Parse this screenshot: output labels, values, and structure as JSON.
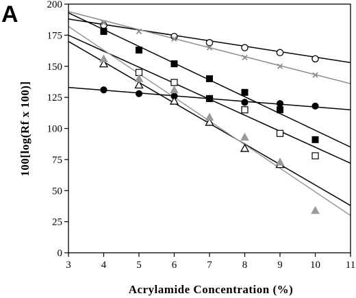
{
  "chart_data": {
    "type": "scatter",
    "panel_label": "A",
    "title": "",
    "xlabel": "Acrylamide Concentration (%)",
    "ylabel": "100[log(Rf x 100)]",
    "xlim": [
      3,
      11
    ],
    "ylim": [
      0,
      200
    ],
    "x_ticks": [
      "3",
      "4",
      "5",
      "6",
      "7",
      "8",
      "9",
      "10",
      "11"
    ],
    "y_ticks": [
      "0",
      "25",
      "50",
      "75",
      "100",
      "125",
      "150",
      "175",
      "200"
    ],
    "grid": false,
    "legend": "none",
    "series": [
      {
        "marker": "open-circle",
        "color": "#000000",
        "line_color": "#000000",
        "points": [
          [
            4,
            183
          ],
          [
            6,
            174
          ],
          [
            7,
            169
          ],
          [
            8,
            165
          ],
          [
            9,
            161
          ],
          [
            10,
            156
          ]
        ],
        "fit": [
          [
            3,
            188
          ],
          [
            11,
            153
          ]
        ]
      },
      {
        "marker": "cross",
        "color": "#8c8c8c",
        "line_color": "#8c8c8c",
        "points": [
          [
            4,
            185
          ],
          [
            5,
            178
          ],
          [
            6,
            172
          ],
          [
            7,
            165
          ],
          [
            8,
            157
          ],
          [
            9,
            150
          ],
          [
            10,
            143
          ]
        ],
        "fit": [
          [
            3,
            194
          ],
          [
            11,
            136
          ]
        ]
      },
      {
        "marker": "filled-square",
        "color": "#000000",
        "line_color": "#000000",
        "points": [
          [
            4,
            178
          ],
          [
            5,
            163
          ],
          [
            6,
            152
          ],
          [
            7,
            140
          ],
          [
            8,
            129
          ],
          [
            9,
            115
          ],
          [
            10,
            91
          ]
        ],
        "fit": [
          [
            3,
            193
          ],
          [
            11,
            85
          ]
        ]
      },
      {
        "marker": "open-square",
        "color": "#000000",
        "line_color": "#000000",
        "points": [
          [
            5,
            145
          ],
          [
            6,
            137
          ],
          [
            7,
            124
          ],
          [
            8,
            115
          ],
          [
            9,
            96
          ],
          [
            10,
            78
          ]
        ],
        "fit": [
          [
            3,
            175
          ],
          [
            11,
            72
          ]
        ]
      },
      {
        "marker": "filled-circle",
        "color": "#000000",
        "line_color": "#000000",
        "points": [
          [
            4,
            131
          ],
          [
            5,
            128
          ],
          [
            6,
            126
          ],
          [
            7,
            124
          ],
          [
            8,
            121
          ],
          [
            9,
            120
          ],
          [
            10,
            118
          ]
        ],
        "fit": [
          [
            3,
            133
          ],
          [
            11,
            115
          ]
        ]
      },
      {
        "marker": "open-triangle",
        "color": "#000000",
        "line_color": "#000000",
        "points": [
          [
            4,
            152
          ],
          [
            5,
            135
          ],
          [
            6,
            122
          ],
          [
            7,
            105
          ],
          [
            8,
            84
          ],
          [
            9,
            71
          ]
        ],
        "fit": [
          [
            3,
            170
          ],
          [
            11,
            38
          ]
        ]
      },
      {
        "marker": "filled-triangle",
        "color": "#999999",
        "line_color": "#999999",
        "points": [
          [
            4,
            156
          ],
          [
            5,
            140
          ],
          [
            6,
            131
          ],
          [
            7,
            109
          ],
          [
            8,
            93
          ],
          [
            9,
            73
          ],
          [
            10,
            34
          ]
        ],
        "fit": [
          [
            3,
            182
          ],
          [
            11,
            30
          ]
        ]
      }
    ]
  }
}
